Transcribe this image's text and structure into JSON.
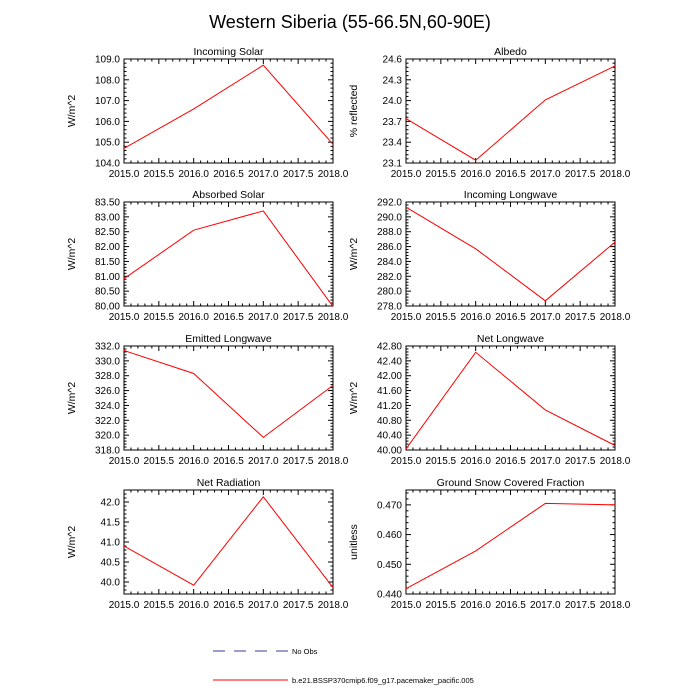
{
  "figure": {
    "title": "Western Siberia (55-66.5N,60-90E)"
  },
  "legend": {
    "items": [
      {
        "label": "No Obs",
        "color": "#3a3a9a",
        "style": "dashed"
      },
      {
        "label": "b.e21.BSSP370cmip6.f09_g17.pacemaker_pacific.005",
        "color": "#ff0000",
        "style": "solid"
      }
    ]
  },
  "chart_data": [
    {
      "type": "line",
      "title": "Incoming Solar",
      "ylabel": "W/m^2",
      "xlim": [
        2015.0,
        2018.0
      ],
      "ylim": [
        104.0,
        109.0
      ],
      "xticks": [
        "2015.0",
        "2015.5",
        "2016.0",
        "2016.5",
        "2017.0",
        "2017.5",
        "2018.0"
      ],
      "yticks": [
        "104.0",
        "105.0",
        "106.0",
        "107.0",
        "108.0",
        "109.0"
      ],
      "x": [
        2015.0,
        2016.0,
        2017.0,
        2018.0
      ],
      "series": [
        {
          "name": "b.e21.BSSP370cmip6.f09_g17.pacemaker_pacific.005",
          "values": [
            104.7,
            106.6,
            108.7,
            104.9
          ]
        }
      ]
    },
    {
      "type": "line",
      "title": "Albedo",
      "ylabel": "% reflected",
      "xlim": [
        2015.0,
        2018.0
      ],
      "ylim": [
        23.1,
        24.6
      ],
      "xticks": [
        "2015.0",
        "2015.5",
        "2016.0",
        "2016.5",
        "2017.0",
        "2017.5",
        "2018.0"
      ],
      "yticks": [
        "23.1",
        "23.4",
        "23.7",
        "24.0",
        "24.3",
        "24.6"
      ],
      "x": [
        2015.0,
        2016.0,
        2017.0,
        2018.0
      ],
      "series": [
        {
          "name": "b.e21.BSSP370cmip6.f09_g17.pacemaker_pacific.005",
          "values": [
            23.74,
            23.14,
            24.01,
            24.5
          ]
        }
      ]
    },
    {
      "type": "line",
      "title": "Absorbed Solar",
      "ylabel": "W/m^2",
      "xlim": [
        2015.0,
        2018.0
      ],
      "ylim": [
        80.0,
        83.5
      ],
      "xticks": [
        "2015.0",
        "2015.5",
        "2016.0",
        "2016.5",
        "2017.0",
        "2017.5",
        "2018.0"
      ],
      "yticks": [
        "80.00",
        "80.50",
        "81.00",
        "81.50",
        "82.00",
        "82.50",
        "83.00",
        "83.50"
      ],
      "x": [
        2015.0,
        2016.0,
        2017.0,
        2018.0
      ],
      "series": [
        {
          "name": "b.e21.BSSP370cmip6.f09_g17.pacemaker_pacific.005",
          "values": [
            80.92,
            82.55,
            83.2,
            79.98
          ]
        }
      ]
    },
    {
      "type": "line",
      "title": "Incoming Longwave",
      "ylabel": "W/m^2",
      "xlim": [
        2015.0,
        2018.0
      ],
      "ylim": [
        278.0,
        292.0
      ],
      "xticks": [
        "2015.0",
        "2015.5",
        "2016.0",
        "2016.5",
        "2017.0",
        "2017.5",
        "2018.0"
      ],
      "yticks": [
        "278.0",
        "280.0",
        "282.0",
        "284.0",
        "286.0",
        "288.0",
        "290.0",
        "292.0"
      ],
      "x": [
        2015.0,
        2016.0,
        2017.0,
        2018.0
      ],
      "series": [
        {
          "name": "b.e21.BSSP370cmip6.f09_g17.pacemaker_pacific.005",
          "values": [
            291.3,
            285.7,
            278.7,
            286.6
          ]
        }
      ]
    },
    {
      "type": "line",
      "title": "Emitted Longwave",
      "ylabel": "W/m^2",
      "xlim": [
        2015.0,
        2018.0
      ],
      "ylim": [
        318.0,
        332.0
      ],
      "xticks": [
        "2015.0",
        "2015.5",
        "2016.0",
        "2016.5",
        "2017.0",
        "2017.5",
        "2018.0"
      ],
      "yticks": [
        "318.0",
        "320.0",
        "322.0",
        "324.0",
        "326.0",
        "328.0",
        "330.0",
        "332.0"
      ],
      "x": [
        2015.0,
        2016.0,
        2017.0,
        2018.0
      ],
      "series": [
        {
          "name": "b.e21.BSSP370cmip6.f09_g17.pacemaker_pacific.005",
          "values": [
            331.4,
            328.3,
            319.7,
            326.7
          ]
        }
      ]
    },
    {
      "type": "line",
      "title": "Net Longwave",
      "ylabel": "W/m^2",
      "xlim": [
        2015.0,
        2018.0
      ],
      "ylim": [
        40.0,
        42.8
      ],
      "xticks": [
        "2015.0",
        "2015.5",
        "2016.0",
        "2016.5",
        "2017.0",
        "2017.5",
        "2018.0"
      ],
      "yticks": [
        "40.00",
        "40.40",
        "40.80",
        "41.20",
        "41.60",
        "42.00",
        "42.40",
        "42.80"
      ],
      "x": [
        2015.0,
        2016.0,
        2017.0,
        2018.0
      ],
      "series": [
        {
          "name": "b.e21.BSSP370cmip6.f09_g17.pacemaker_pacific.005",
          "values": [
            40.03,
            42.63,
            41.08,
            40.12
          ]
        }
      ]
    },
    {
      "type": "line",
      "title": "Net Radiation",
      "ylabel": "W/m^2",
      "xlim": [
        2015.0,
        2018.0
      ],
      "ylim": [
        39.7,
        42.3
      ],
      "xticks": [
        "2015.0",
        "2015.5",
        "2016.0",
        "2016.5",
        "2017.0",
        "2017.5",
        "2018.0"
      ],
      "yticks": [
        "40.0",
        "40.5",
        "41.0",
        "41.5",
        "42.0"
      ],
      "x": [
        2015.0,
        2016.0,
        2017.0,
        2018.0
      ],
      "series": [
        {
          "name": "b.e21.BSSP370cmip6.f09_g17.pacemaker_pacific.005",
          "values": [
            40.9,
            39.92,
            42.13,
            39.86
          ]
        }
      ]
    },
    {
      "type": "line",
      "title": "Ground Snow Covered Fraction",
      "ylabel": "unitless",
      "xlim": [
        2015.0,
        2018.0
      ],
      "ylim": [
        0.44,
        0.475
      ],
      "xticks": [
        "2015.0",
        "2015.5",
        "2016.0",
        "2016.5",
        "2017.0",
        "2017.5",
        "2018.0"
      ],
      "yticks": [
        "0.440",
        "0.450",
        "0.460",
        "0.470"
      ],
      "x": [
        2015.0,
        2016.0,
        2017.0,
        2018.0
      ],
      "series": [
        {
          "name": "b.e21.BSSP370cmip6.f09_g17.pacemaker_pacific.005",
          "values": [
            0.4418,
            0.4545,
            0.4705,
            0.47
          ]
        }
      ]
    }
  ]
}
